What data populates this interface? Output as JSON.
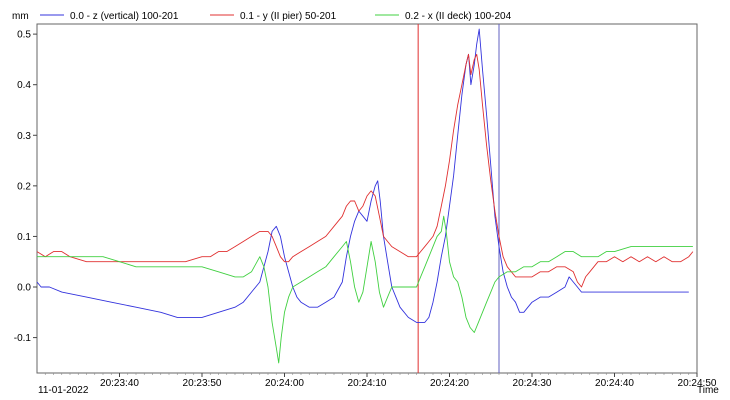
{
  "chart_data": {
    "type": "line",
    "title": "",
    "ylabel": "mm",
    "xlabel": "Time",
    "date_label": "11-01-2022",
    "x_unit": "seconds after 20:23:30",
    "xlim": [
      0,
      80
    ],
    "ylim": [
      -0.17,
      0.52
    ],
    "x_ticks": [
      {
        "x": 10,
        "label": "20:23:40"
      },
      {
        "x": 20,
        "label": "20:23:50"
      },
      {
        "x": 30,
        "label": "20:24:00"
      },
      {
        "x": 40,
        "label": "20:24:10"
      },
      {
        "x": 50,
        "label": "20:24:20"
      },
      {
        "x": 60,
        "label": "20:24:30"
      },
      {
        "x": 70,
        "label": "20:24:40"
      },
      {
        "x": 80,
        "label": "20:24:50"
      }
    ],
    "y_ticks": [
      {
        "y": -0.1,
        "label": "-0.1"
      },
      {
        "y": 0.0,
        "label": "0.0"
      },
      {
        "y": 0.1,
        "label": "0.1"
      },
      {
        "y": 0.2,
        "label": "0.2"
      },
      {
        "y": 0.3,
        "label": "0.3"
      },
      {
        "y": 0.4,
        "label": "0.4"
      },
      {
        "y": 0.5,
        "label": "0.5"
      }
    ],
    "cursors": [
      {
        "x": 46.2,
        "color": "#e03030"
      },
      {
        "x": 56.0,
        "color": "#6060c0"
      }
    ],
    "series": [
      {
        "name": "0.0 - z (vertical) 100-201",
        "color": "#3333dd",
        "points": [
          [
            0,
            0.01
          ],
          [
            0.5,
            0.0
          ],
          [
            1.5,
            0.0
          ],
          [
            3,
            -0.01
          ],
          [
            6,
            -0.02
          ],
          [
            9,
            -0.03
          ],
          [
            12,
            -0.04
          ],
          [
            15,
            -0.05
          ],
          [
            17,
            -0.06
          ],
          [
            20,
            -0.06
          ],
          [
            22,
            -0.05
          ],
          [
            24,
            -0.04
          ],
          [
            25,
            -0.03
          ],
          [
            26,
            -0.01
          ],
          [
            27,
            0.01
          ],
          [
            27.5,
            0.04
          ],
          [
            28,
            0.07
          ],
          [
            28.5,
            0.11
          ],
          [
            29,
            0.12
          ],
          [
            29.5,
            0.1
          ],
          [
            30,
            0.06
          ],
          [
            30.5,
            0.03
          ],
          [
            31,
            0.0
          ],
          [
            31.5,
            -0.02
          ],
          [
            32,
            -0.03
          ],
          [
            33,
            -0.04
          ],
          [
            34,
            -0.04
          ],
          [
            35,
            -0.03
          ],
          [
            36,
            -0.02
          ],
          [
            37,
            0.01
          ],
          [
            37.5,
            0.06
          ],
          [
            38,
            0.1
          ],
          [
            38.5,
            0.13
          ],
          [
            39,
            0.15
          ],
          [
            39.5,
            0.14
          ],
          [
            40,
            0.13
          ],
          [
            40.5,
            0.17
          ],
          [
            41,
            0.2
          ],
          [
            41.3,
            0.21
          ],
          [
            41.6,
            0.17
          ],
          [
            42,
            0.1
          ],
          [
            42.5,
            0.05
          ],
          [
            43,
            0.0
          ],
          [
            43.5,
            -0.02
          ],
          [
            44,
            -0.04
          ],
          [
            45,
            -0.06
          ],
          [
            46,
            -0.07
          ],
          [
            47,
            -0.07
          ],
          [
            47.5,
            -0.06
          ],
          [
            48,
            -0.03
          ],
          [
            48.5,
            0.01
          ],
          [
            49,
            0.06
          ],
          [
            49.5,
            0.1
          ],
          [
            50,
            0.16
          ],
          [
            50.5,
            0.22
          ],
          [
            51,
            0.3
          ],
          [
            51.5,
            0.38
          ],
          [
            52,
            0.44
          ],
          [
            52.3,
            0.46
          ],
          [
            52.6,
            0.4
          ],
          [
            53,
            0.44
          ],
          [
            53.3,
            0.48
          ],
          [
            53.6,
            0.51
          ],
          [
            54,
            0.43
          ],
          [
            54.5,
            0.34
          ],
          [
            55,
            0.24
          ],
          [
            55.5,
            0.14
          ],
          [
            56,
            0.08
          ],
          [
            56.5,
            0.03
          ],
          [
            57,
            0.0
          ],
          [
            57.5,
            -0.02
          ],
          [
            58,
            -0.03
          ],
          [
            58.5,
            -0.05
          ],
          [
            59,
            -0.05
          ],
          [
            59.5,
            -0.04
          ],
          [
            60,
            -0.03
          ],
          [
            61,
            -0.02
          ],
          [
            62,
            -0.02
          ],
          [
            63,
            -0.01
          ],
          [
            64,
            0.0
          ],
          [
            64.5,
            0.02
          ],
          [
            65,
            0.01
          ],
          [
            65.5,
            0.0
          ],
          [
            66,
            -0.01
          ],
          [
            67,
            -0.01
          ],
          [
            68,
            -0.01
          ],
          [
            70,
            -0.01
          ],
          [
            72,
            -0.01
          ],
          [
            74,
            -0.01
          ],
          [
            76,
            -0.01
          ],
          [
            78,
            -0.01
          ],
          [
            79,
            -0.01
          ]
        ]
      },
      {
        "name": "0.1 - y (II pier) 50-201",
        "color": "#e03030",
        "points": [
          [
            0,
            0.07
          ],
          [
            1,
            0.06
          ],
          [
            2,
            0.07
          ],
          [
            3,
            0.07
          ],
          [
            4,
            0.06
          ],
          [
            6,
            0.05
          ],
          [
            8,
            0.05
          ],
          [
            10,
            0.05
          ],
          [
            12,
            0.05
          ],
          [
            14,
            0.05
          ],
          [
            16,
            0.05
          ],
          [
            18,
            0.05
          ],
          [
            20,
            0.06
          ],
          [
            21,
            0.06
          ],
          [
            22,
            0.07
          ],
          [
            23,
            0.07
          ],
          [
            24,
            0.08
          ],
          [
            25,
            0.09
          ],
          [
            26,
            0.1
          ],
          [
            27,
            0.11
          ],
          [
            28,
            0.11
          ],
          [
            28.5,
            0.1
          ],
          [
            29,
            0.08
          ],
          [
            29.5,
            0.06
          ],
          [
            30,
            0.05
          ],
          [
            30.5,
            0.05
          ],
          [
            31,
            0.06
          ],
          [
            32,
            0.07
          ],
          [
            33,
            0.08
          ],
          [
            34,
            0.09
          ],
          [
            35,
            0.1
          ],
          [
            36,
            0.12
          ],
          [
            37,
            0.14
          ],
          [
            37.5,
            0.16
          ],
          [
            38,
            0.17
          ],
          [
            38.5,
            0.17
          ],
          [
            39,
            0.15
          ],
          [
            39.5,
            0.16
          ],
          [
            40,
            0.18
          ],
          [
            40.5,
            0.19
          ],
          [
            41,
            0.18
          ],
          [
            41.5,
            0.14
          ],
          [
            42,
            0.1
          ],
          [
            42.5,
            0.09
          ],
          [
            43,
            0.08
          ],
          [
            44,
            0.07
          ],
          [
            45,
            0.06
          ],
          [
            46,
            0.06
          ],
          [
            46.5,
            0.07
          ],
          [
            47,
            0.08
          ],
          [
            47.5,
            0.09
          ],
          [
            48,
            0.1
          ],
          [
            48.5,
            0.12
          ],
          [
            49,
            0.16
          ],
          [
            49.5,
            0.2
          ],
          [
            50,
            0.25
          ],
          [
            50.5,
            0.31
          ],
          [
            51,
            0.36
          ],
          [
            51.5,
            0.4
          ],
          [
            52,
            0.44
          ],
          [
            52.3,
            0.46
          ],
          [
            52.6,
            0.42
          ],
          [
            53,
            0.45
          ],
          [
            53.3,
            0.46
          ],
          [
            53.6,
            0.43
          ],
          [
            54,
            0.36
          ],
          [
            54.5,
            0.28
          ],
          [
            55,
            0.21
          ],
          [
            55.5,
            0.15
          ],
          [
            56,
            0.1
          ],
          [
            56.5,
            0.06
          ],
          [
            57,
            0.04
          ],
          [
            57.5,
            0.03
          ],
          [
            58,
            0.02
          ],
          [
            59,
            0.02
          ],
          [
            60,
            0.02
          ],
          [
            61,
            0.03
          ],
          [
            62,
            0.03
          ],
          [
            63,
            0.04
          ],
          [
            64,
            0.04
          ],
          [
            65,
            0.03
          ],
          [
            65.5,
            0.01
          ],
          [
            66,
            0.0
          ],
          [
            66.5,
            0.02
          ],
          [
            67,
            0.03
          ],
          [
            68,
            0.05
          ],
          [
            69,
            0.05
          ],
          [
            70,
            0.06
          ],
          [
            71,
            0.05
          ],
          [
            72,
            0.06
          ],
          [
            73,
            0.05
          ],
          [
            74,
            0.06
          ],
          [
            75,
            0.05
          ],
          [
            76,
            0.06
          ],
          [
            77,
            0.05
          ],
          [
            78,
            0.05
          ],
          [
            79,
            0.06
          ],
          [
            79.5,
            0.07
          ]
        ]
      },
      {
        "name": "0.2 - x (II deck) 100-204",
        "color": "#40d040",
        "points": [
          [
            0,
            0.06
          ],
          [
            2,
            0.06
          ],
          [
            4,
            0.06
          ],
          [
            6,
            0.06
          ],
          [
            8,
            0.06
          ],
          [
            10,
            0.05
          ],
          [
            12,
            0.04
          ],
          [
            14,
            0.04
          ],
          [
            16,
            0.04
          ],
          [
            18,
            0.04
          ],
          [
            20,
            0.04
          ],
          [
            22,
            0.03
          ],
          [
            24,
            0.02
          ],
          [
            25,
            0.02
          ],
          [
            26,
            0.03
          ],
          [
            27,
            0.06
          ],
          [
            27.5,
            0.04
          ],
          [
            28,
            0.0
          ],
          [
            28.5,
            -0.07
          ],
          [
            29,
            -0.12
          ],
          [
            29.3,
            -0.15
          ],
          [
            29.6,
            -0.1
          ],
          [
            30,
            -0.05
          ],
          [
            30.5,
            -0.02
          ],
          [
            31,
            0.0
          ],
          [
            32,
            0.01
          ],
          [
            33,
            0.02
          ],
          [
            34,
            0.03
          ],
          [
            35,
            0.04
          ],
          [
            36,
            0.06
          ],
          [
            37,
            0.08
          ],
          [
            37.5,
            0.09
          ],
          [
            38,
            0.05
          ],
          [
            38.5,
            0.0
          ],
          [
            39,
            -0.03
          ],
          [
            39.5,
            -0.01
          ],
          [
            40,
            0.04
          ],
          [
            40.5,
            0.09
          ],
          [
            41,
            0.05
          ],
          [
            41.5,
            -0.01
          ],
          [
            42,
            -0.04
          ],
          [
            42.5,
            -0.02
          ],
          [
            43,
            0.0
          ],
          [
            44,
            0.0
          ],
          [
            45,
            0.0
          ],
          [
            46,
            0.0
          ],
          [
            46.5,
            0.02
          ],
          [
            47,
            0.04
          ],
          [
            47.5,
            0.06
          ],
          [
            48,
            0.08
          ],
          [
            48.5,
            0.1
          ],
          [
            49,
            0.11
          ],
          [
            49.3,
            0.14
          ],
          [
            49.6,
            0.11
          ],
          [
            50,
            0.05
          ],
          [
            50.5,
            0.02
          ],
          [
            51,
            0.01
          ],
          [
            51.5,
            -0.02
          ],
          [
            52,
            -0.06
          ],
          [
            52.5,
            -0.08
          ],
          [
            53,
            -0.09
          ],
          [
            53.5,
            -0.07
          ],
          [
            54,
            -0.05
          ],
          [
            54.5,
            -0.03
          ],
          [
            55,
            -0.01
          ],
          [
            55.5,
            0.01
          ],
          [
            56,
            0.02
          ],
          [
            57,
            0.03
          ],
          [
            58,
            0.03
          ],
          [
            59,
            0.04
          ],
          [
            60,
            0.04
          ],
          [
            61,
            0.05
          ],
          [
            62,
            0.05
          ],
          [
            63,
            0.06
          ],
          [
            64,
            0.07
          ],
          [
            65,
            0.07
          ],
          [
            66,
            0.06
          ],
          [
            67,
            0.06
          ],
          [
            68,
            0.06
          ],
          [
            69,
            0.07
          ],
          [
            70,
            0.07
          ],
          [
            72,
            0.08
          ],
          [
            74,
            0.08
          ],
          [
            76,
            0.08
          ],
          [
            78,
            0.08
          ],
          [
            79.5,
            0.08
          ]
        ]
      }
    ]
  }
}
